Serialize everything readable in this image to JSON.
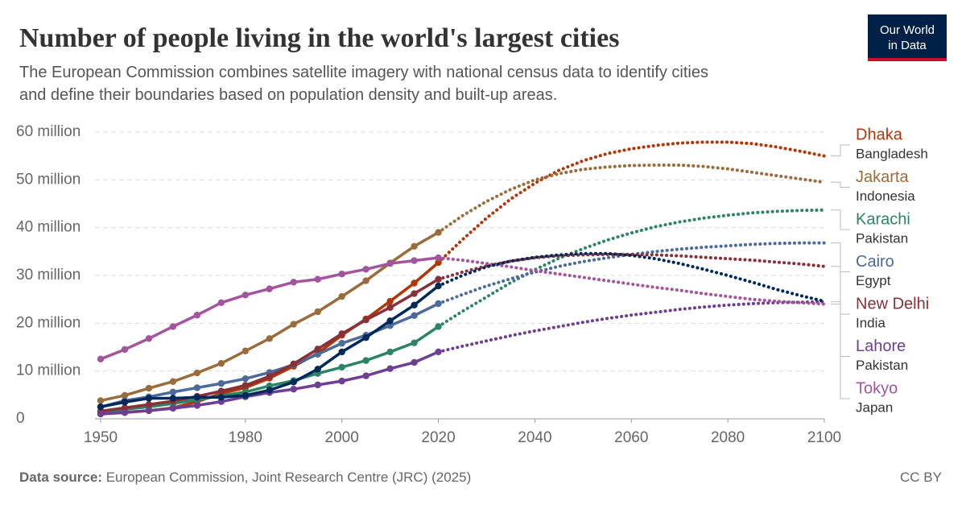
{
  "chart_data": {
    "type": "line",
    "title": "Number of people living in the world's largest cities",
    "subtitle": [
      "The European Commission combines satellite imagery with national census data to identify cities",
      "and define their boundaries based on population density and built-up areas."
    ],
    "logo": [
      "Our World",
      "in Data"
    ],
    "source_label": "Data source:",
    "source_text": "European Commission, Joint Research Centre (JRC) (2025)",
    "license": "CC BY",
    "x": [
      1950,
      1955,
      1960,
      1965,
      1970,
      1975,
      1980,
      1985,
      1990,
      1995,
      2000,
      2005,
      2010,
      2015,
      2020,
      2025,
      2030,
      2035,
      2040,
      2045,
      2050,
      2055,
      2060,
      2065,
      2070,
      2075,
      2080,
      2085,
      2090,
      2095,
      2100
    ],
    "xlim": [
      1950,
      2100
    ],
    "xticks": [
      1950,
      1980,
      2000,
      2020,
      2040,
      2060,
      2080,
      2100
    ],
    "ylim": [
      0,
      60
    ],
    "yticks": [
      0,
      {
        "value": 10,
        "label": "10 million"
      },
      {
        "value": 20,
        "label": "20 million"
      },
      {
        "value": 30,
        "label": "30 million"
      },
      {
        "value": 40,
        "label": "40 million"
      },
      {
        "value": 50,
        "label": "50 million"
      },
      {
        "value": 60,
        "label": "60 million"
      }
    ],
    "grid": true,
    "legend": "right",
    "series": [
      {
        "name": "Dhaka",
        "country": "Bangladesh",
        "color": "#b13507",
        "values": [
          1.2,
          1.4,
          1.7,
          2.3,
          3.6,
          5.3,
          6.5,
          8.5,
          11.0,
          13.7,
          17.5,
          20.9,
          24.6,
          28.4,
          32.7,
          null,
          null,
          null,
          null,
          null,
          null,
          null,
          null,
          null,
          null,
          null,
          null,
          null,
          null,
          null,
          null
        ],
        "projected_values": [
          null,
          null,
          null,
          null,
          null,
          null,
          null,
          null,
          null,
          null,
          null,
          null,
          null,
          null,
          32.7,
          37.5,
          42,
          46,
          49.3,
          52,
          54,
          55.5,
          56.5,
          57.2,
          57.7,
          57.9,
          57.9,
          57.6,
          56.9,
          56.0,
          55.0
        ]
      },
      {
        "name": "Jakarta",
        "country": "Indonesia",
        "color": "#9a6c3b",
        "values": [
          3.8,
          4.9,
          6.4,
          7.8,
          9.6,
          11.6,
          14.2,
          16.8,
          19.8,
          22.4,
          25.6,
          28.9,
          32.6,
          36.1,
          39.0,
          null,
          null,
          null,
          null,
          null,
          null,
          null,
          null,
          null,
          null,
          null,
          null,
          null,
          null,
          null,
          null
        ],
        "projected_values": [
          null,
          null,
          null,
          null,
          null,
          null,
          null,
          null,
          null,
          null,
          null,
          null,
          null,
          null,
          39.0,
          42.5,
          45.5,
          48,
          50,
          51.3,
          52.2,
          52.7,
          53.0,
          53.1,
          53.1,
          52.8,
          52.3,
          51.6,
          50.9,
          50.2,
          49.5
        ]
      },
      {
        "name": "Karachi",
        "country": "Pakistan",
        "color": "#2c8465",
        "values": [
          1.5,
          2.0,
          2.5,
          3.2,
          4.0,
          4.8,
          5.6,
          6.9,
          8.0,
          9.5,
          10.8,
          12.2,
          14.0,
          15.9,
          19.3,
          null,
          null,
          null,
          null,
          null,
          null,
          null,
          null,
          null,
          null,
          null,
          null,
          null,
          null,
          null,
          null
        ],
        "projected_values": [
          null,
          null,
          null,
          null,
          null,
          null,
          null,
          null,
          null,
          null,
          null,
          null,
          null,
          null,
          19.3,
          22.5,
          25.5,
          28.5,
          31.2,
          33.6,
          35.6,
          37.4,
          38.9,
          40.2,
          41.2,
          42.0,
          42.6,
          43.1,
          43.4,
          43.6,
          43.7
        ]
      },
      {
        "name": "Cairo",
        "country": "Egypt",
        "color": "#4c6a9c",
        "values": [
          2.5,
          3.8,
          4.6,
          5.6,
          6.5,
          7.4,
          8.4,
          9.7,
          11.3,
          13.5,
          15.8,
          17.5,
          19.5,
          21.6,
          24.1,
          null,
          null,
          null,
          null,
          null,
          null,
          null,
          null,
          null,
          null,
          null,
          null,
          null,
          null,
          null,
          null
        ],
        "projected_values": [
          null,
          null,
          null,
          null,
          null,
          null,
          null,
          null,
          null,
          null,
          null,
          null,
          null,
          null,
          24.1,
          26,
          27.8,
          29.3,
          30.7,
          31.9,
          32.9,
          33.7,
          34.4,
          35.0,
          35.5,
          35.9,
          36.2,
          36.5,
          36.7,
          36.8,
          36.8
        ]
      },
      {
        "name": "New Delhi",
        "country": "India",
        "color": "#883039",
        "values": [
          1.6,
          2.3,
          3.0,
          3.7,
          4.7,
          5.8,
          7.0,
          8.9,
          11.5,
          14.6,
          17.8,
          20.7,
          23.3,
          26.2,
          29.2,
          null,
          null,
          null,
          null,
          null,
          null,
          null,
          null,
          null,
          null,
          null,
          null,
          null,
          null,
          null,
          null
        ],
        "projected_values": [
          null,
          null,
          null,
          null,
          null,
          null,
          null,
          null,
          null,
          null,
          null,
          null,
          null,
          null,
          29.2,
          30.7,
          32,
          33,
          33.7,
          34.1,
          34.3,
          34.4,
          34.4,
          34.3,
          34.1,
          33.8,
          33.5,
          33.2,
          32.8,
          32.4,
          31.9
        ]
      },
      {
        "name": "Lahore",
        "country": "Pakistan",
        "color": "#6d3e91",
        "values": [
          1.0,
          1.3,
          1.7,
          2.2,
          2.8,
          3.6,
          4.6,
          5.5,
          6.2,
          7.1,
          7.9,
          9.0,
          10.5,
          11.8,
          14.0,
          null,
          null,
          null,
          null,
          null,
          null,
          null,
          null,
          null,
          null,
          null,
          null,
          null,
          null,
          null,
          null
        ],
        "projected_values": [
          null,
          null,
          null,
          null,
          null,
          null,
          null,
          null,
          null,
          null,
          null,
          null,
          null,
          null,
          14.0,
          15.2,
          16.3,
          17.4,
          18.4,
          19.3,
          20.2,
          21.0,
          21.7,
          22.3,
          22.9,
          23.4,
          23.8,
          24.1,
          24.3,
          24.4,
          24.5
        ]
      },
      {
        "name": "Tokyo",
        "country": "Japan",
        "color": "#a2559c",
        "values": [
          12.5,
          14.5,
          16.8,
          19.3,
          21.7,
          24.3,
          25.9,
          27.2,
          28.6,
          29.2,
          30.3,
          31.3,
          32.5,
          33.1,
          33.7,
          null,
          null,
          null,
          null,
          null,
          null,
          null,
          null,
          null,
          null,
          null,
          null,
          null,
          null,
          null,
          null
        ],
        "projected_values": [
          null,
          null,
          null,
          null,
          null,
          null,
          null,
          null,
          null,
          null,
          null,
          null,
          null,
          null,
          33.7,
          33.2,
          32.5,
          31.8,
          31.0,
          30.3,
          29.6,
          28.9,
          28.2,
          27.5,
          26.9,
          26.2,
          25.6,
          25.0,
          24.6,
          24.3,
          24.0
        ]
      },
      {
        "name": null,
        "country": null,
        "color": "#00295b",
        "values": [
          2.5,
          3.5,
          4.3,
          4.3,
          4.5,
          4.5,
          4.9,
          6.0,
          7.7,
          10.4,
          14.0,
          17.0,
          20.5,
          23.8,
          27.8,
          null,
          null,
          null,
          null,
          null,
          null,
          null,
          null,
          null,
          null,
          null,
          null,
          null,
          null,
          null,
          null
        ],
        "projected_values": [
          null,
          null,
          null,
          null,
          null,
          null,
          null,
          null,
          null,
          null,
          null,
          null,
          null,
          null,
          27.8,
          30,
          31.8,
          33,
          33.8,
          34.3,
          34.6,
          34.6,
          34.2,
          33.5,
          32.5,
          31.3,
          30,
          28.6,
          27.1,
          25.8,
          24.6
        ]
      }
    ]
  }
}
